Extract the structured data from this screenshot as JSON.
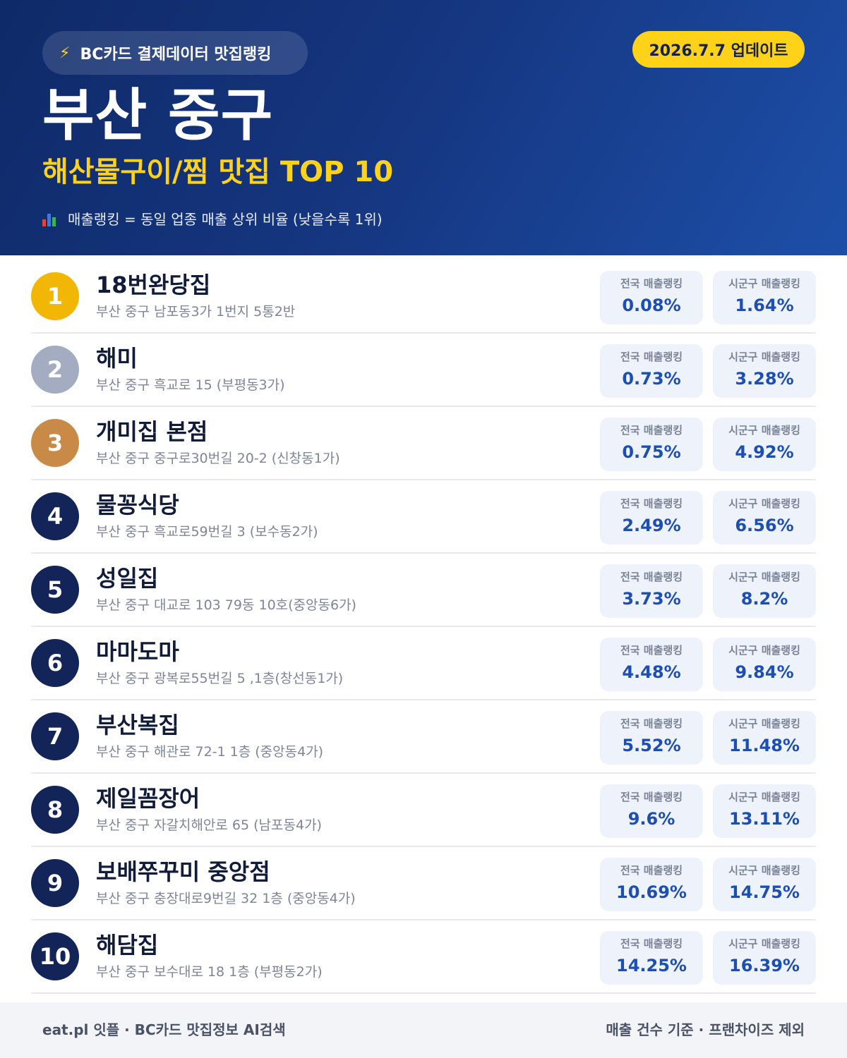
{
  "header": {
    "source_badge": "BC카드 결제데이터 맛집랭킹",
    "update_badge": "2026.7.7 업데이트",
    "region": "부산 중구",
    "category": "해산물구이/찜 맛집 TOP 10",
    "legend_note": "매출랭킹 = 동일 업종 매출 상위 비율 (낮을수록 1위)"
  },
  "stat_labels": {
    "national": "전국 매출랭킹",
    "district": "시군구 매출랭킹"
  },
  "restaurants": [
    {
      "rank": "1",
      "name": "18번완당집",
      "address": "부산 중구 남포동3가 1번지 5통2반",
      "national": "0.08%",
      "district": "1.64%"
    },
    {
      "rank": "2",
      "name": "해미",
      "address": "부산 중구 흑교로 15 (부평동3가)",
      "national": "0.73%",
      "district": "3.28%"
    },
    {
      "rank": "3",
      "name": "개미집 본점",
      "address": "부산 중구 중구로30번길 20-2 (신창동1가)",
      "national": "0.75%",
      "district": "4.92%"
    },
    {
      "rank": "4",
      "name": "물꽁식당",
      "address": "부산 중구 흑교로59번길 3 (보수동2가)",
      "national": "2.49%",
      "district": "6.56%"
    },
    {
      "rank": "5",
      "name": "성일집",
      "address": "부산 중구 대교로 103 79동 10호(중앙동6가)",
      "national": "3.73%",
      "district": "8.2%"
    },
    {
      "rank": "6",
      "name": "마마도마",
      "address": "부산 중구 광복로55번길 5 ,1층(창선동1가)",
      "national": "4.48%",
      "district": "9.84%"
    },
    {
      "rank": "7",
      "name": "부산복집",
      "address": "부산 중구 해관로 72-1 1층 (중앙동4가)",
      "national": "5.52%",
      "district": "11.48%"
    },
    {
      "rank": "8",
      "name": "제일꼼장어",
      "address": "부산 중구 자갈치해안로 65 (남포동4가)",
      "national": "9.6%",
      "district": "13.11%"
    },
    {
      "rank": "9",
      "name": "보배쭈꾸미 중앙점",
      "address": "부산 중구 충장대로9번길 32 1층 (중앙동4가)",
      "national": "10.69%",
      "district": "14.75%"
    },
    {
      "rank": "10",
      "name": "해담집",
      "address": "부산 중구 보수대로 18 1층 (부평동2가)",
      "national": "14.25%",
      "district": "16.39%"
    }
  ],
  "footer": {
    "left": "eat.pl 잇플 · BC카드 맛집정보 AI검색",
    "right": "매출 건수 기준 · 프랜차이즈 제외"
  },
  "colors": {
    "header_navy": "#15357f",
    "accent_yellow": "#ffd21a",
    "gold": "#f2b705",
    "silver": "#a3acc0",
    "bronze": "#c98a47",
    "value_blue": "#1d4fb0"
  },
  "icons": {
    "source_badge": "lightning-bolt-icon",
    "legend_note": "bar-chart-icon"
  }
}
